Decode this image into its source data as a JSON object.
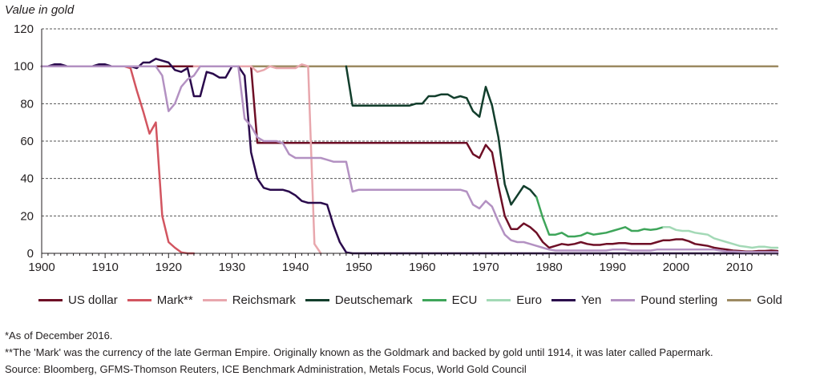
{
  "chart_data": {
    "type": "line",
    "title": "",
    "ylabel": "Value in gold",
    "xlabel": "",
    "xlim": [
      1900,
      2016
    ],
    "ylim": [
      0,
      120
    ],
    "xticks": [
      1900,
      1910,
      1920,
      1930,
      1940,
      1950,
      1960,
      1970,
      1980,
      1990,
      2000,
      2010
    ],
    "yticks": [
      0,
      20,
      40,
      60,
      80,
      100,
      120
    ],
    "grid": "horizontal dashed",
    "legend_position": "bottom",
    "series": [
      {
        "name": "US dollar",
        "color": "#6e0f26",
        "points": [
          [
            1900,
            100
          ],
          [
            1933,
            100
          ],
          [
            1934,
            59
          ],
          [
            1967,
            59
          ],
          [
            1968,
            53
          ],
          [
            1969,
            51
          ],
          [
            1970,
            58
          ],
          [
            1971,
            54
          ],
          [
            1972,
            36
          ],
          [
            1973,
            20
          ],
          [
            1974,
            13
          ],
          [
            1975,
            13
          ],
          [
            1976,
            16
          ],
          [
            1977,
            14
          ],
          [
            1978,
            11
          ],
          [
            1979,
            6
          ],
          [
            1980,
            3
          ],
          [
            1981,
            4
          ],
          [
            1982,
            5
          ],
          [
            1983,
            4.5
          ],
          [
            1984,
            5
          ],
          [
            1985,
            6
          ],
          [
            1986,
            5
          ],
          [
            1987,
            4.5
          ],
          [
            1988,
            4.5
          ],
          [
            1989,
            5
          ],
          [
            1990,
            5
          ],
          [
            1991,
            5.5
          ],
          [
            1992,
            5.5
          ],
          [
            1993,
            5
          ],
          [
            1994,
            5
          ],
          [
            1995,
            5
          ],
          [
            1996,
            5
          ],
          [
            1997,
            6
          ],
          [
            1998,
            7
          ],
          [
            1999,
            7
          ],
          [
            2000,
            7.5
          ],
          [
            2001,
            7.5
          ],
          [
            2002,
            6.5
          ],
          [
            2003,
            5
          ],
          [
            2004,
            4.5
          ],
          [
            2005,
            4
          ],
          [
            2006,
            3
          ],
          [
            2007,
            2.5
          ],
          [
            2008,
            2
          ],
          [
            2009,
            1.5
          ],
          [
            2010,
            1.3
          ],
          [
            2011,
            1
          ],
          [
            2012,
            1
          ],
          [
            2013,
            1.3
          ],
          [
            2014,
            1.3
          ],
          [
            2015,
            1.5
          ],
          [
            2016,
            1.3
          ]
        ]
      },
      {
        "name": "Mark**",
        "color": "#d25560",
        "points": [
          [
            1900,
            100
          ],
          [
            1913,
            100
          ],
          [
            1914,
            99
          ],
          [
            1915,
            87
          ],
          [
            1916,
            76
          ],
          [
            1917,
            64
          ],
          [
            1918,
            70
          ],
          [
            1919,
            20
          ],
          [
            1920,
            6
          ],
          [
            1921,
            3
          ],
          [
            1922,
            0.5
          ],
          [
            1923,
            0
          ],
          [
            1924,
            0
          ]
        ]
      },
      {
        "name": "Reichsmark",
        "color": "#e8a7ad",
        "points": [
          [
            1924,
            100
          ],
          [
            1933,
            100
          ],
          [
            1934,
            97
          ],
          [
            1935,
            98
          ],
          [
            1936,
            100
          ],
          [
            1937,
            99
          ],
          [
            1938,
            99
          ],
          [
            1939,
            99
          ],
          [
            1940,
            99
          ],
          [
            1941,
            101
          ],
          [
            1942,
            100
          ],
          [
            1943,
            5
          ],
          [
            1944,
            0
          ]
        ]
      },
      {
        "name": "Deutschemark",
        "color": "#123e2c",
        "points": [
          [
            1948,
            100
          ],
          [
            1949,
            79
          ],
          [
            1950,
            79
          ],
          [
            1955,
            79
          ],
          [
            1958,
            79
          ],
          [
            1959,
            80
          ],
          [
            1960,
            80
          ],
          [
            1961,
            84
          ],
          [
            1962,
            84
          ],
          [
            1963,
            85
          ],
          [
            1964,
            85
          ],
          [
            1965,
            83
          ],
          [
            1966,
            84
          ],
          [
            1967,
            83
          ],
          [
            1968,
            76
          ],
          [
            1969,
            73
          ],
          [
            1970,
            89
          ],
          [
            1971,
            79
          ],
          [
            1972,
            62
          ],
          [
            1973,
            37
          ],
          [
            1974,
            26
          ],
          [
            1975,
            31
          ],
          [
            1976,
            36
          ],
          [
            1977,
            34
          ],
          [
            1978,
            30
          ]
        ]
      },
      {
        "name": "ECU",
        "color": "#3ea55a",
        "points": [
          [
            1978,
            30
          ],
          [
            1979,
            19
          ],
          [
            1980,
            10
          ],
          [
            1981,
            10
          ],
          [
            1982,
            11
          ],
          [
            1983,
            9
          ],
          [
            1984,
            9
          ],
          [
            1985,
            9.5
          ],
          [
            1986,
            11
          ],
          [
            1987,
            10
          ],
          [
            1988,
            10.5
          ],
          [
            1989,
            11
          ],
          [
            1990,
            12
          ],
          [
            1991,
            13
          ],
          [
            1992,
            14
          ],
          [
            1993,
            12
          ],
          [
            1994,
            12
          ],
          [
            1995,
            13
          ],
          [
            1996,
            12.5
          ],
          [
            1997,
            13
          ],
          [
            1998,
            14
          ]
        ]
      },
      {
        "name": "Euro",
        "color": "#a3d9b6",
        "points": [
          [
            1998,
            14
          ],
          [
            1999,
            14
          ],
          [
            2000,
            12.5
          ],
          [
            2001,
            12
          ],
          [
            2002,
            12
          ],
          [
            2003,
            11
          ],
          [
            2004,
            10.5
          ],
          [
            2005,
            10
          ],
          [
            2006,
            8
          ],
          [
            2007,
            7
          ],
          [
            2008,
            6
          ],
          [
            2009,
            5
          ],
          [
            2010,
            4
          ],
          [
            2011,
            3.5
          ],
          [
            2012,
            3
          ],
          [
            2013,
            3.5
          ],
          [
            2014,
            3.5
          ],
          [
            2015,
            3
          ],
          [
            2016,
            3
          ]
        ]
      },
      {
        "name": "Yen",
        "color": "#2a0a4c",
        "points": [
          [
            1900,
            100
          ],
          [
            1901,
            100
          ],
          [
            1902,
            101
          ],
          [
            1903,
            101
          ],
          [
            1904,
            100
          ],
          [
            1905,
            100
          ],
          [
            1906,
            100
          ],
          [
            1907,
            100
          ],
          [
            1908,
            100
          ],
          [
            1909,
            101
          ],
          [
            1910,
            101
          ],
          [
            1911,
            100
          ],
          [
            1912,
            100
          ],
          [
            1913,
            100
          ],
          [
            1914,
            100
          ],
          [
            1915,
            99
          ],
          [
            1916,
            102
          ],
          [
            1917,
            102
          ],
          [
            1918,
            104
          ],
          [
            1919,
            103
          ],
          [
            1920,
            102
          ],
          [
            1921,
            98
          ],
          [
            1922,
            97
          ],
          [
            1923,
            99
          ],
          [
            1924,
            84
          ],
          [
            1925,
            84
          ],
          [
            1926,
            97
          ],
          [
            1927,
            96
          ],
          [
            1928,
            94
          ],
          [
            1929,
            94
          ],
          [
            1930,
            100
          ],
          [
            1931,
            100
          ],
          [
            1932,
            95
          ],
          [
            1933,
            54
          ],
          [
            1934,
            40
          ],
          [
            1935,
            35
          ],
          [
            1936,
            34
          ],
          [
            1937,
            34
          ],
          [
            1938,
            34
          ],
          [
            1939,
            33
          ],
          [
            1940,
            31
          ],
          [
            1941,
            28
          ],
          [
            1942,
            27
          ],
          [
            1943,
            27
          ],
          [
            1944,
            27
          ],
          [
            1945,
            26
          ],
          [
            1946,
            15
          ],
          [
            1947,
            6
          ],
          [
            1948,
            0.5
          ],
          [
            1949,
            0
          ],
          [
            2016,
            0
          ]
        ]
      },
      {
        "name": "Pound sterling",
        "color": "#b391c2",
        "points": [
          [
            1900,
            100
          ],
          [
            1913,
            100
          ],
          [
            1914,
            100
          ],
          [
            1915,
            100
          ],
          [
            1916,
            100
          ],
          [
            1917,
            100
          ],
          [
            1918,
            100
          ],
          [
            1919,
            95
          ],
          [
            1920,
            76
          ],
          [
            1921,
            80
          ],
          [
            1922,
            89
          ],
          [
            1923,
            93
          ],
          [
            1924,
            95
          ],
          [
            1925,
            100
          ],
          [
            1931,
            100
          ],
          [
            1932,
            72
          ],
          [
            1933,
            68
          ],
          [
            1934,
            62
          ],
          [
            1935,
            60
          ],
          [
            1936,
            60
          ],
          [
            1937,
            60
          ],
          [
            1938,
            59
          ],
          [
            1939,
            53
          ],
          [
            1940,
            51
          ],
          [
            1944,
            51
          ],
          [
            1945,
            50
          ],
          [
            1946,
            49
          ],
          [
            1947,
            49
          ],
          [
            1948,
            49
          ],
          [
            1949,
            33
          ],
          [
            1950,
            34
          ],
          [
            1955,
            34
          ],
          [
            1960,
            34
          ],
          [
            1965,
            34
          ],
          [
            1966,
            34
          ],
          [
            1967,
            33
          ],
          [
            1968,
            26
          ],
          [
            1969,
            24
          ],
          [
            1970,
            28
          ],
          [
            1971,
            25
          ],
          [
            1972,
            17
          ],
          [
            1973,
            10
          ],
          [
            1974,
            7
          ],
          [
            1975,
            6
          ],
          [
            1976,
            6
          ],
          [
            1977,
            5
          ],
          [
            1978,
            4
          ],
          [
            1979,
            3
          ],
          [
            1980,
            2
          ],
          [
            1981,
            1.5
          ],
          [
            1982,
            1.5
          ],
          [
            1983,
            1.5
          ],
          [
            1984,
            1.5
          ],
          [
            1985,
            1.5
          ],
          [
            1986,
            1.5
          ],
          [
            1987,
            1.5
          ],
          [
            1988,
            1.5
          ],
          [
            1989,
            1.5
          ],
          [
            1990,
            2
          ],
          [
            1991,
            2
          ],
          [
            1992,
            2
          ],
          [
            1993,
            1.5
          ],
          [
            1994,
            1.5
          ],
          [
            1995,
            1.5
          ],
          [
            1996,
            1.5
          ],
          [
            1997,
            2
          ],
          [
            1998,
            2
          ],
          [
            1999,
            2
          ],
          [
            2000,
            2
          ],
          [
            2001,
            2
          ],
          [
            2002,
            2
          ],
          [
            2003,
            2
          ],
          [
            2004,
            2
          ],
          [
            2005,
            2
          ],
          [
            2006,
            2
          ],
          [
            2007,
            1.5
          ],
          [
            2008,
            1
          ],
          [
            2009,
            1
          ],
          [
            2010,
            0.8
          ],
          [
            2011,
            0.7
          ],
          [
            2012,
            0.7
          ],
          [
            2013,
            0.7
          ],
          [
            2014,
            0.7
          ],
          [
            2015,
            0.7
          ],
          [
            2016,
            0.7
          ]
        ]
      },
      {
        "name": "Gold",
        "color": "#9c8a62",
        "points": [
          [
            1900,
            100
          ],
          [
            2016,
            100
          ]
        ]
      }
    ]
  },
  "notes": {
    "asof": "*As of December 2016.",
    "mark": "**The 'Mark' was the currency of the late German Empire. Originally known as the Goldmark and backed by gold until 1914, it was later called Papermark.",
    "source": "Source: Bloomberg, GFMS-Thomson Reuters, ICE Benchmark Administration, Metals Focus, World Gold Council"
  }
}
